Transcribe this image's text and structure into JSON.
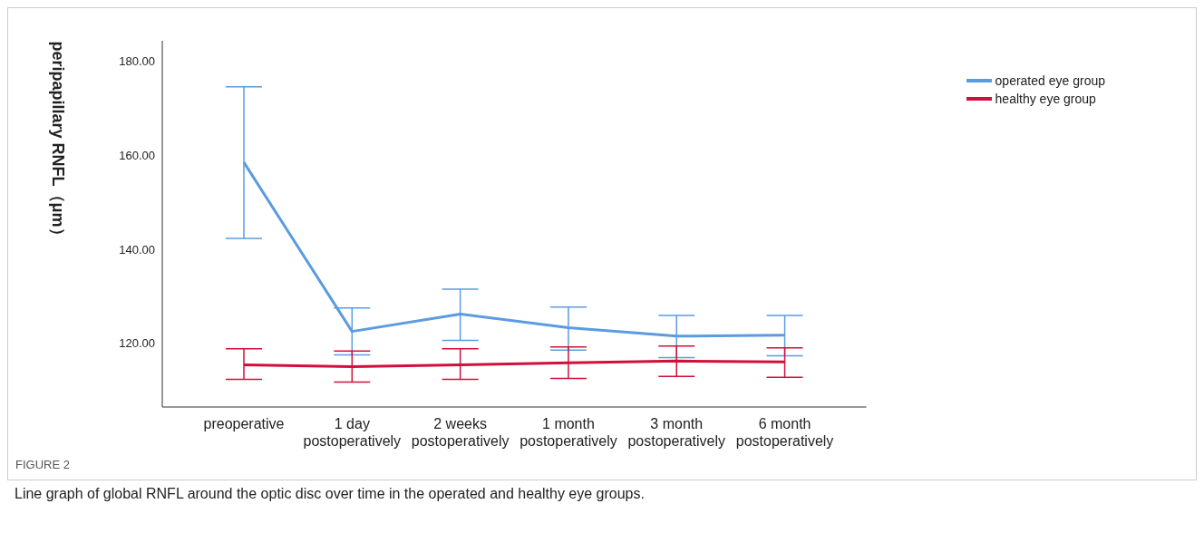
{
  "chart_data": {
    "type": "line",
    "ylabel": "peripapillary RNFL（μm）",
    "categories": [
      "preoperative",
      "1 day\npostoperatively",
      "2 weeks\npostoperatively",
      "1 month\npostoperatively",
      "3 month\npostoperatively",
      "6 month\npostoperatively"
    ],
    "series": [
      {
        "name": "operated eye group",
        "color": "#5b9be0",
        "values": [
          158.5,
          122.5,
          126.2,
          123.3,
          121.5,
          121.7
        ],
        "errors": [
          [
            142.3,
            174.6
          ],
          [
            117.5,
            127.5
          ],
          [
            120.6,
            131.5
          ],
          [
            118.5,
            127.7
          ],
          [
            116.9,
            125.9
          ],
          [
            117.3,
            125.9
          ]
        ]
      },
      {
        "name": "healthy eye group",
        "color": "#d0103a",
        "values": [
          115.4,
          115.0,
          115.4,
          115.8,
          116.2,
          116.0
        ],
        "errors": [
          [
            112.3,
            118.8
          ],
          [
            111.7,
            118.3
          ],
          [
            112.3,
            118.8
          ],
          [
            112.5,
            119.2
          ],
          [
            112.9,
            119.4
          ],
          [
            112.7,
            119.0
          ]
        ]
      }
    ],
    "ylim": [
      106.4,
      184.4
    ],
    "yticks": [
      {
        "value": 120,
        "label": "120.00"
      },
      {
        "value": 140,
        "label": "140.00"
      },
      {
        "value": 160,
        "label": "160.00"
      },
      {
        "value": 180,
        "label": "180.00"
      }
    ],
    "grid": false,
    "legend": "top right",
    "marker": "none",
    "annotations": [
      "FIGURE 2",
      "Line graph of global RNFL around the optic disc over time in the operated and healthy eye groups."
    ]
  }
}
